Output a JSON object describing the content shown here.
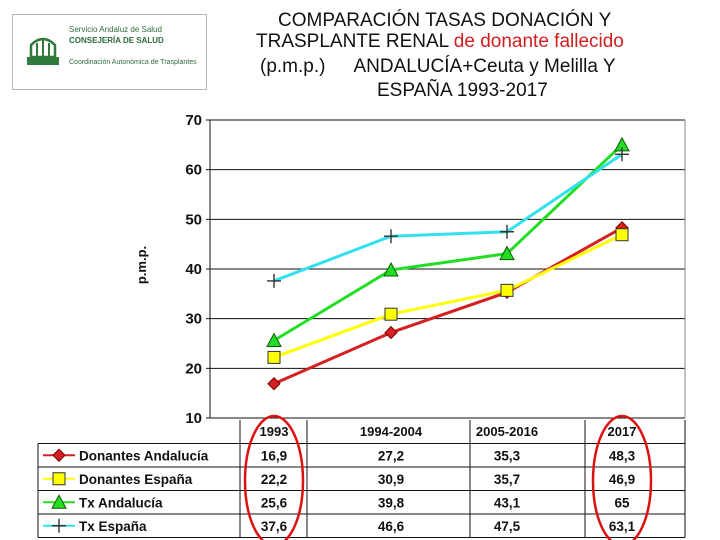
{
  "logo": {
    "line1": "Servicio Andaluz de Salud",
    "line2": "CONSEJERÍA DE SALUD",
    "line3": "Coordinación Autonómica de Trasplantes"
  },
  "title": {
    "line1": "COMPARACIÓN TASAS DONACIÓN  Y",
    "line2a": "TRASPLANTE RENAL ",
    "line2b": "de donante fallecido",
    "line3a": "(p.m.p.)",
    "line3b": "ANDALUCÍA+Ceuta y Melilla  Y",
    "line4": "ESPAÑA 1993-2017"
  },
  "chart_data": {
    "type": "line",
    "categories": [
      "1993",
      "1994-2004",
      "2005-2016",
      "2017"
    ],
    "ylabel": "p.m.p.",
    "ylim": [
      10,
      70
    ],
    "yticks": [
      "10",
      "20",
      "30",
      "40",
      "50",
      "60",
      "70"
    ],
    "grid": true,
    "series": [
      {
        "name": "Donantes Andalucía",
        "values": [
          16.9,
          27.2,
          35.3,
          48.3
        ],
        "labels": [
          "16,9",
          "27,2",
          "35,3",
          "48,3"
        ],
        "color": "#d42020",
        "marker": "diamond"
      },
      {
        "name": "Donantes España",
        "values": [
          22.2,
          30.9,
          35.7,
          46.9
        ],
        "labels": [
          "22,2",
          "30,9",
          "35,7",
          "46,9"
        ],
        "color": "#ffff00",
        "marker": "square"
      },
      {
        "name": "Tx Andalucía",
        "values": [
          25.6,
          39.8,
          43.1,
          65
        ],
        "labels": [
          "25,6",
          "39,8",
          "43,1",
          "65"
        ],
        "color": "#22dd22",
        "marker": "triangle"
      },
      {
        "name": "Tx España",
        "values": [
          37.6,
          46.6,
          47.5,
          63.1
        ],
        "labels": [
          "37,6",
          "46,6",
          "47,5",
          "63,1"
        ],
        "color": "#33e0ee",
        "marker": "plus"
      }
    ],
    "highlight_color": "#dd1111"
  }
}
